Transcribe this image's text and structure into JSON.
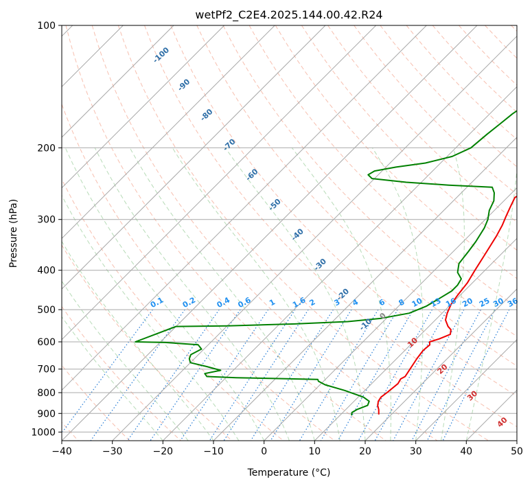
{
  "chart_data": {
    "type": "line",
    "subtype": "skew-t log-p",
    "title": "wetPf2_C2E4.2025.144.00.42.R24",
    "xlabel": "Temperature (°C)",
    "ylabel": "Pressure (hPa)",
    "xlim": [
      -40,
      50
    ],
    "ylim": [
      1050,
      100
    ],
    "y_scale": "log",
    "grid": true,
    "x_ticks": [
      "−40",
      "−30",
      "−20",
      "−10",
      "0",
      "10",
      "20",
      "30",
      "40",
      "50"
    ],
    "y_ticks": [
      "100",
      "200",
      "300",
      "400",
      "500",
      "600",
      "700",
      "800",
      "900",
      "1000"
    ],
    "isotherm_labels": [
      "-100",
      "-90",
      "-80",
      "-70",
      "-60",
      "-50",
      "-40",
      "-30",
      "-20",
      "-10",
      "0",
      "10",
      "20",
      "30",
      "40"
    ],
    "mixing_ratio_labels": [
      "0.1",
      "0.2",
      "0.4",
      "0.6",
      "1",
      "1.6",
      "2",
      "3",
      "4",
      "6",
      "8",
      "10",
      "13",
      "16",
      "20",
      "25",
      "30",
      "36"
    ],
    "series": [
      {
        "color": "#ee0000",
        "points": [
          [
            17.5,
            905
          ],
          [
            16.5,
            880
          ],
          [
            15.5,
            860
          ],
          [
            14.8,
            840
          ],
          [
            14.5,
            820
          ],
          [
            14.8,
            800
          ],
          [
            15.2,
            760
          ],
          [
            14.8,
            740
          ],
          [
            15.2,
            730
          ],
          [
            14.7,
            700
          ],
          [
            14.0,
            660
          ],
          [
            13.6,
            630
          ],
          [
            13.8,
            610
          ],
          [
            13.2,
            600
          ],
          [
            14.5,
            590
          ],
          [
            15.8,
            575
          ],
          [
            15.0,
            560
          ],
          [
            13.8,
            550
          ],
          [
            12.0,
            530
          ],
          [
            11.0,
            510
          ],
          [
            10.0,
            485
          ],
          [
            9.5,
            460
          ],
          [
            9.0,
            430
          ],
          [
            8.0,
            400
          ],
          [
            7.0,
            370
          ],
          [
            5.5,
            330
          ],
          [
            4.5,
            310
          ],
          [
            3.5,
            295
          ],
          [
            2.5,
            280
          ],
          [
            1.5,
            265
          ],
          [
            2.5,
            255
          ],
          [
            5.0,
            240
          ],
          [
            6.0,
            225
          ],
          [
            6.5,
            210
          ],
          [
            6.8,
            200
          ],
          [
            7.5,
            180
          ],
          [
            8.0,
            165
          ],
          [
            9.0,
            150
          ],
          [
            9.3,
            140
          ],
          [
            9.5,
            130
          ],
          [
            11.0,
            120
          ],
          [
            11.8,
            115
          ],
          [
            13.5,
            105
          ],
          [
            14.0,
            100
          ]
        ]
      },
      {
        "color": "#008000",
        "points": [
          [
            12.3,
            910
          ],
          [
            11.8,
            895
          ],
          [
            12.2,
            880
          ],
          [
            13.5,
            860
          ],
          [
            13.0,
            840
          ],
          [
            11.0,
            820
          ],
          [
            6.0,
            790
          ],
          [
            1.0,
            765
          ],
          [
            -1.0,
            750
          ],
          [
            -1.5,
            742
          ],
          [
            -11.0,
            738
          ],
          [
            -18.0,
            735
          ],
          [
            -24.0,
            730
          ],
          [
            -25.0,
            718
          ],
          [
            -22.5,
            705
          ],
          [
            -26.0,
            690
          ],
          [
            -30.0,
            675
          ],
          [
            -31.0,
            660
          ],
          [
            -31.5,
            645
          ],
          [
            -30.5,
            625
          ],
          [
            -32.0,
            610
          ],
          [
            -39.0,
            602
          ],
          [
            -45.0,
            600
          ],
          [
            -40.0,
            550
          ],
          [
            -30.0,
            548
          ],
          [
            -17.0,
            542
          ],
          [
            -7.0,
            535
          ],
          [
            -1.0,
            525
          ],
          [
            3.5,
            510
          ],
          [
            5.5,
            490
          ],
          [
            6.5,
            470
          ],
          [
            7.5,
            450
          ],
          [
            7.5,
            435
          ],
          [
            7.0,
            420
          ],
          [
            5.0,
            405
          ],
          [
            3.5,
            385
          ],
          [
            3.0,
            360
          ],
          [
            2.5,
            340
          ],
          [
            1.5,
            315
          ],
          [
            0.5,
            300
          ],
          [
            -1.0,
            285
          ],
          [
            -2.0,
            270
          ],
          [
            -3.5,
            258
          ],
          [
            -5.0,
            250
          ],
          [
            -14.0,
            247
          ],
          [
            -23.0,
            243
          ],
          [
            -30.5,
            238
          ],
          [
            -32.0,
            233
          ],
          [
            -31.5,
            228
          ],
          [
            -28.0,
            223
          ],
          [
            -23.0,
            218
          ],
          [
            -19.0,
            210
          ],
          [
            -17.0,
            200
          ],
          [
            -16.5,
            185
          ],
          [
            -16.0,
            175
          ],
          [
            -15.5,
            165
          ],
          [
            -14.5,
            155
          ],
          [
            -13.5,
            150
          ],
          [
            -11.5,
            140
          ],
          [
            -10.5,
            133
          ],
          [
            -10.0,
            125
          ],
          [
            -10.0,
            118
          ],
          [
            -9.5,
            112
          ],
          [
            -7.5,
            105
          ],
          [
            -5.0,
            100
          ]
        ]
      }
    ]
  }
}
